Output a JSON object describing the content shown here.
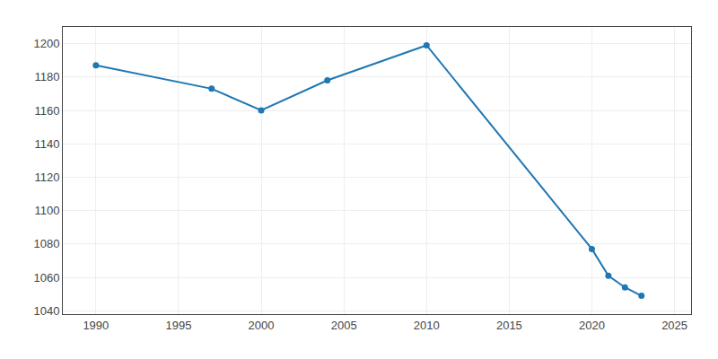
{
  "chart_data": {
    "type": "line",
    "x": [
      1990,
      1997,
      2000,
      2004,
      2010,
      2020,
      2021,
      2022,
      2023
    ],
    "values": [
      1187,
      1173,
      1160,
      1178,
      1199,
      1077,
      1061,
      1054,
      1049
    ],
    "marker": "circle",
    "xlim": [
      1988,
      2026
    ],
    "ylim": [
      1038,
      1210
    ],
    "xticks": [
      1990,
      1995,
      2000,
      2005,
      2010,
      2015,
      2020,
      2025
    ],
    "yticks": [
      1040,
      1060,
      1080,
      1100,
      1120,
      1140,
      1160,
      1180,
      1200
    ],
    "grid": true
  }
}
